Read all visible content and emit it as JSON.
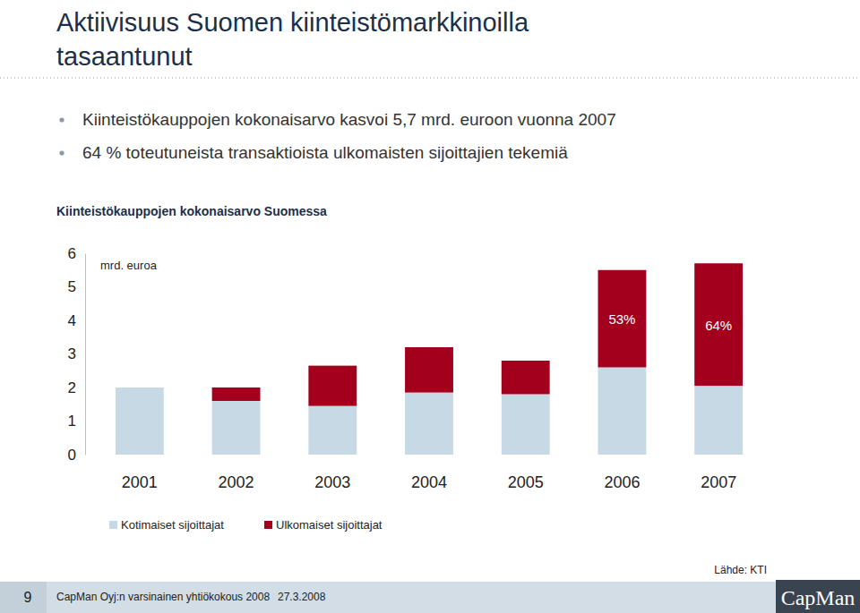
{
  "slide": {
    "title_lines": [
      "Aktiivisuus Suomen kiinteistömarkkinoilla",
      "tasaantunut"
    ],
    "bullets": [
      "Kiinteistökauppojen kokonaisarvo kasvoi 5,7 mrd. euroon vuonna 2007",
      "64 % toteutuneista transaktioista ulkomaisten sijoittajien tekemiä"
    ],
    "source": "Lähde: KTI",
    "page": 9,
    "footer": "CapMan Oyj:n varsinainen yhtiökokous 2008",
    "date": "27.3.2008",
    "logo": "CapMan"
  },
  "chart_data": {
    "type": "bar",
    "stacked": true,
    "title": "Kiinteistökauppojen kokonaisarvo Suomessa",
    "y_label": "mrd. euroa",
    "categories": [
      "2001",
      "2002",
      "2003",
      "2004",
      "2005",
      "2006",
      "2007"
    ],
    "series": [
      {
        "name": "Kotimaiset sijoittajat",
        "color": "#c6d9e4",
        "values": [
          2.0,
          1.6,
          1.45,
          1.85,
          1.8,
          2.6,
          2.05
        ]
      },
      {
        "name": "Ulkomaiset sijoittajat",
        "color": "#a3001e",
        "values": [
          0,
          0.4,
          1.2,
          1.35,
          1.0,
          2.9,
          3.65
        ]
      }
    ],
    "ylim": [
      0,
      6
    ],
    "yticks": [
      0,
      1,
      2,
      3,
      4,
      5,
      6
    ],
    "grid": false,
    "legend": "bottom",
    "annotations": [
      {
        "category": "2006",
        "text": "53%"
      },
      {
        "category": "2007",
        "text": "64%"
      }
    ]
  }
}
